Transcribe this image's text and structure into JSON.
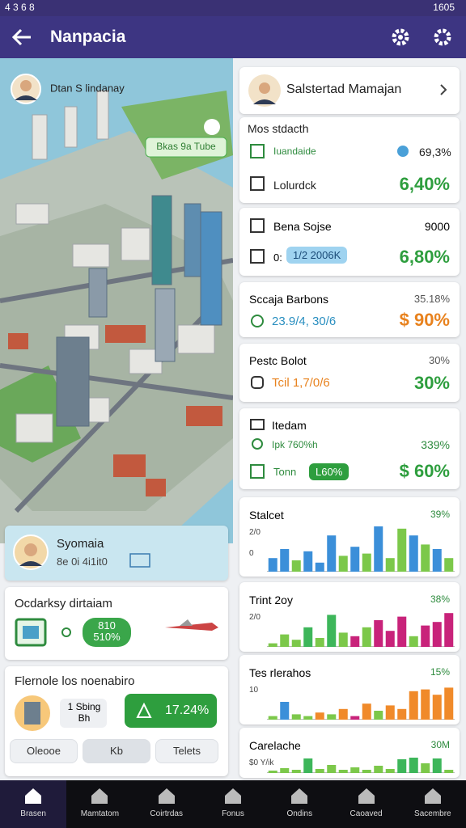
{
  "status_bar": {
    "left": "4 3 6 8",
    "clock": "1605"
  },
  "app_bar": {
    "title": "Nanpacia"
  },
  "map": {
    "place": "Dtan S lindanay",
    "badge": "Bkas 9a Tube"
  },
  "left_cards": {
    "location": {
      "title": "Syomaia",
      "subtitle": "8e 0i 4i1it0"
    },
    "transit": {
      "title": "Ocdarksy dirtaiam",
      "pill": "810 510%"
    },
    "planner": {
      "title": "Flernole los noenabiro",
      "detail": "1 Sbing Bh",
      "value": "17.24%",
      "buttons": [
        "Oleooe",
        "Kb",
        "Telets"
      ]
    }
  },
  "profile": {
    "name": "Salstertad Mamajan"
  },
  "summary": {
    "heading": "Mos stdacth",
    "row1_label": "Iuandaide",
    "row1_value": "69,3%",
    "row2_label": "Lolurdck",
    "row2_value": "6,40%"
  },
  "cards": [
    {
      "title": "Bena Sojse",
      "right": "9000",
      "sub": "0:",
      "pill": "1/2 2006K",
      "value": "6,80%"
    },
    {
      "title": "Sccaja Barbons",
      "right": "35.18%",
      "sub": "23.9/4, 30/6",
      "value": "$ 90%"
    },
    {
      "title": "Pestc Bolot",
      "right": "30%",
      "sub": "Tcil 1,7/0/6",
      "value": "30%"
    },
    {
      "title": "Itedam",
      "sub": "Ipk 760%h",
      "right": "339%",
      "sub2": "Tonn",
      "pill": "L60%",
      "value": "$ 60%"
    }
  ],
  "charts": [
    {
      "title": "Stalcet",
      "right": "39%",
      "ticks": [
        "2/0",
        "0"
      ],
      "ylim": [
        0,
        100
      ],
      "values": [
        30,
        50,
        25,
        45,
        20,
        80,
        35,
        55,
        40,
        100,
        30,
        95,
        80,
        60,
        50,
        30
      ],
      "colors": [
        "#3b8fd9",
        "#3b8fd9",
        "#7cc84a",
        "#3b8fd9",
        "#3b8fd9",
        "#3b8fd9",
        "#7cc84a",
        "#3b8fd9",
        "#7cc84a",
        "#3b8fd9",
        "#7cc84a",
        "#7cc84a",
        "#3b8fd9",
        "#7cc84a",
        "#3b8fd9",
        "#7cc84a"
      ]
    },
    {
      "title": "Trint 2oy",
      "right": "38%",
      "ticks": [
        "2/0"
      ],
      "ylim": [
        0,
        100
      ],
      "values": [
        10,
        35,
        20,
        55,
        25,
        90,
        40,
        30,
        55,
        75,
        45,
        85,
        30,
        60,
        70,
        95
      ],
      "colors": [
        "#7cc84a",
        "#7cc84a",
        "#7cc84a",
        "#3db65a",
        "#7cc84a",
        "#3db65a",
        "#7cc84a",
        "#c8237a",
        "#7cc84a",
        "#c8237a",
        "#c8237a",
        "#c8237a",
        "#7cc84a",
        "#c8237a",
        "#c8237a",
        "#c8237a"
      ]
    },
    {
      "title": "Tes rlerahos",
      "right": "15%",
      "ticks": [
        "10"
      ],
      "ylim": [
        0,
        100
      ],
      "values": [
        10,
        50,
        15,
        10,
        20,
        15,
        30,
        10,
        45,
        25,
        40,
        30,
        80,
        85,
        70,
        90
      ],
      "colors": [
        "#7cc84a",
        "#3b8fd9",
        "#7cc84a",
        "#7cc84a",
        "#f08a2a",
        "#7cc84a",
        "#f08a2a",
        "#c8237a",
        "#f08a2a",
        "#7cc84a",
        "#f08a2a",
        "#f08a2a",
        "#f08a2a",
        "#f08a2a",
        "#f08a2a",
        "#f08a2a"
      ]
    },
    {
      "title": "Carelache",
      "right": "30M",
      "ticks": [
        "$0 Y/ik"
      ],
      "ylim": [
        0,
        100
      ],
      "values": [
        15,
        30,
        20,
        90,
        25,
        50,
        20,
        35,
        20,
        45,
        25,
        85,
        95,
        60,
        90,
        20
      ],
      "colors": [
        "#7cc84a",
        "#7cc84a",
        "#7cc84a",
        "#3db65a",
        "#7cc84a",
        "#7cc84a",
        "#7cc84a",
        "#7cc84a",
        "#7cc84a",
        "#7cc84a",
        "#7cc84a",
        "#3db65a",
        "#3db65a",
        "#7cc84a",
        "#3db65a",
        "#7cc84a"
      ]
    }
  ],
  "nav": [
    "Brasen",
    "Mamtatom",
    "Coirtrdas",
    "Fonus",
    "Ondins",
    "Caoaved",
    "Sacembre"
  ]
}
